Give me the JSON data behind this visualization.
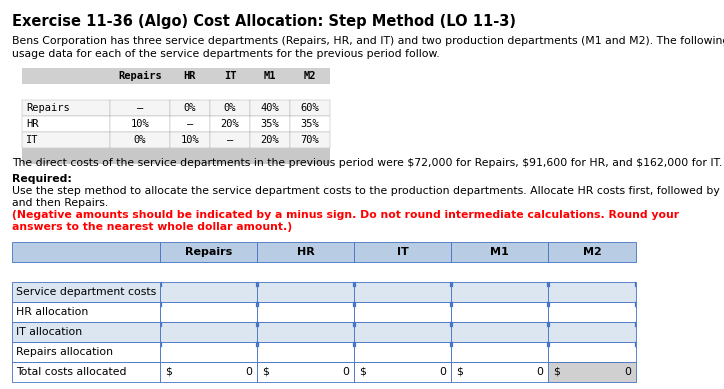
{
  "title": "Exercise 11-36 (Algo) Cost Allocation: Step Method (LO 11-3)",
  "bg_color": "#ffffff",
  "intro_line1": "Bens Corporation has three service departments (Repairs, HR, and IT) and two production departments (M1 and M2). The following",
  "intro_line2": "usage data for each of the service departments for the previous period follow.",
  "usage_header": [
    "",
    "Repairs",
    "HR",
    "IT",
    "M1",
    "M2"
  ],
  "usage_rows": [
    [
      "Repairs",
      "–",
      "0%",
      "0%",
      "40%",
      "60%"
    ],
    [
      "HR",
      "10%",
      "–",
      "20%",
      "35%",
      "35%"
    ],
    [
      "IT",
      "0%",
      "10%",
      "–",
      "20%",
      "70%"
    ]
  ],
  "usage_header_bg": "#d0d0d0",
  "usage_row_bg": [
    "#f5f5f5",
    "#ffffff",
    "#f5f5f5"
  ],
  "usage_footer_bg": "#c8c8c8",
  "direct_costs": "The direct costs of the service departments in the previous period were $72,000 for Repairs, $91,600 for HR, and $162,000 for IT.",
  "required_label": "Required:",
  "required_body_line1": "Use the step method to allocate the service department costs to the production departments. Allocate HR costs first, followed by IT,",
  "required_body_line2": "and then Repairs.",
  "red_bold_line1": "(Negative amounts should be indicated by a minus sign. Do not round intermediate calculations. Round your",
  "red_bold_line2": "answers to the nearest whole dollar amount.)",
  "alloc_header": [
    "",
    "Repairs",
    "HR",
    "IT",
    "M1",
    "M2"
  ],
  "alloc_rows": [
    [
      "Service department costs",
      "",
      "",
      "",
      "",
      ""
    ],
    [
      "HR allocation",
      "",
      "",
      "",
      "",
      ""
    ],
    [
      "IT allocation",
      "",
      "",
      "",
      "",
      ""
    ],
    [
      "Repairs allocation",
      "",
      "",
      "",
      "",
      ""
    ],
    [
      "Total costs allocated",
      "$ 0",
      "$ 0",
      "$ 0",
      "$ 0",
      "$ 0"
    ]
  ],
  "alloc_header_bg": "#b8cce4",
  "alloc_row_bgs": [
    "#dce6f1",
    "#ffffff",
    "#dce6f1",
    "#ffffff",
    "#ffffff"
  ],
  "alloc_border": "#4472c4",
  "alloc_last_col_bg": "#d0d0d0",
  "tick_color": "#4472c4"
}
